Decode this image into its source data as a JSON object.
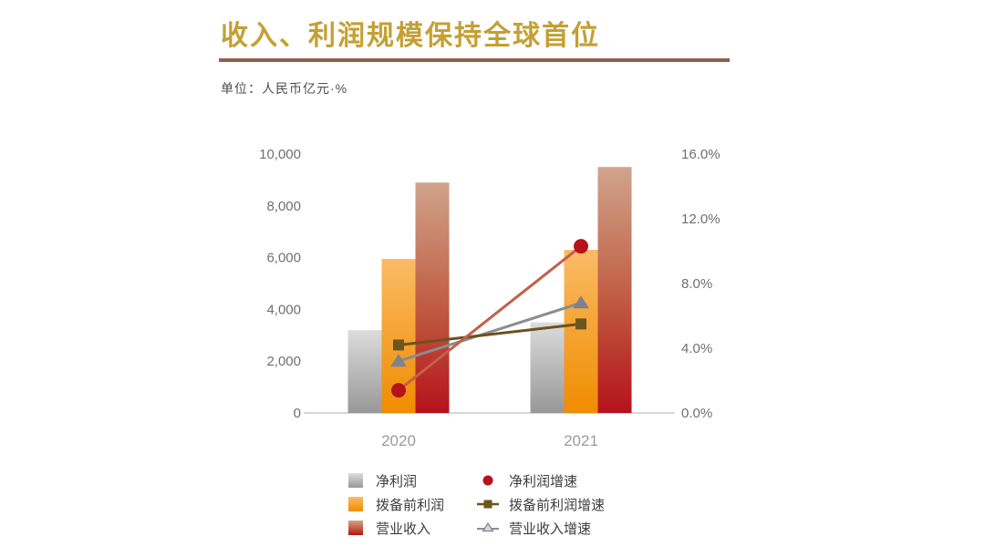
{
  "header": {
    "title": "收入、利润规模保持全球首位",
    "unit_label": "单位：人民币亿元·%",
    "title_color": "#C4A033",
    "underline_color": "#8E5F4B"
  },
  "chart_data": {
    "type": "combo-bar-line",
    "categories": [
      "2020",
      "2021"
    ],
    "bar_series": [
      {
        "name": "净利润",
        "values": [
          3200,
          3500
        ],
        "gradient": [
          [
            "0%",
            "#dcdcdc"
          ],
          [
            "100%",
            "#989898"
          ]
        ]
      },
      {
        "name": "拨备前利润",
        "values": [
          5950,
          6300
        ],
        "gradient": [
          [
            "0%",
            "#fabb66"
          ],
          [
            "100%",
            "#f08c00"
          ]
        ]
      },
      {
        "name": "营业收入",
        "values": [
          8900,
          9500
        ],
        "gradient": [
          [
            "0%",
            "#d0a48c"
          ],
          [
            "55%",
            "#c05a40"
          ],
          [
            "100%",
            "#b5121b"
          ]
        ]
      }
    ],
    "line_series": [
      {
        "name": "净利润增速",
        "values": [
          1.4,
          10.3
        ],
        "line_color": "#c4604a",
        "marker": "circle",
        "marker_color": "#b5121b"
      },
      {
        "name": "拨备前利润增速",
        "values": [
          4.2,
          5.5
        ],
        "line_color": "#6d511c",
        "marker": "square",
        "marker_color": "#6d5520"
      },
      {
        "name": "营业收入增速",
        "values": [
          3.2,
          6.8
        ],
        "line_color": "#8a8d92",
        "marker": "triangle",
        "marker_color": "#7e828a"
      }
    ],
    "left_axis": {
      "min": 0,
      "max": 10000,
      "tick_labels": [
        "10,000",
        "8,000",
        "6,000",
        "4,000",
        "2,000",
        "0"
      ]
    },
    "right_axis": {
      "min": 0,
      "max": 16,
      "tick_labels": [
        "16.0%",
        "12.0%",
        "8.0%",
        "4.0%",
        "0.0%"
      ]
    },
    "legend_position": "bottom",
    "grid": false
  }
}
